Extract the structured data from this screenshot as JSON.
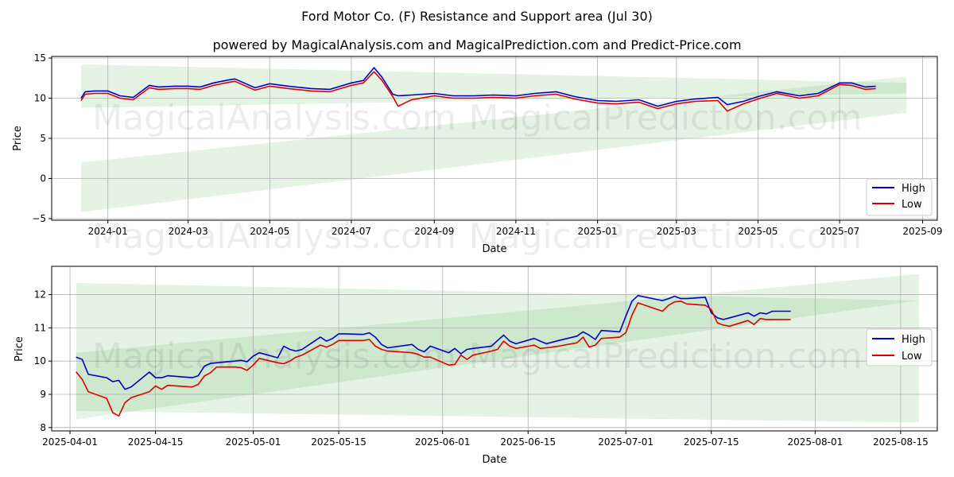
{
  "title": "Ford Motor Co. (F) Resistance and Support area (Jul 30)",
  "subtitle": "powered by MagicalAnalysis.com and MagicalPrediction.com and Predict-Price.com",
  "watermarks": [
    "MagicalAnalysis.com",
    "MagicalPrediction.com"
  ],
  "colors": {
    "high": "#0000cc",
    "low": "#dd0000",
    "band": "#2ca02c",
    "grid": "#b0b0b0"
  },
  "chart_data": [
    {
      "type": "line",
      "xlabel": "Date",
      "ylabel": "Price",
      "ylim": [
        -5.2,
        15.2
      ],
      "xlim": [
        "2023-11-20",
        "2025-09-12"
      ],
      "grid": true,
      "legend": "bottom-right",
      "yticks": [
        -5,
        0,
        5,
        10,
        15
      ],
      "xticks": [
        "2024-01",
        "2024-03",
        "2024-05",
        "2024-07",
        "2024-09",
        "2024-11",
        "2025-01",
        "2025-03",
        "2025-05",
        "2025-07",
        "2025-09"
      ],
      "bands": [
        {
          "x": [
            "2023-12-12",
            "2025-08-20"
          ],
          "upper": [
            14.2,
            11.9
          ],
          "lower": [
            8.8,
            10.6
          ]
        },
        {
          "x": [
            "2023-12-12",
            "2025-08-20"
          ],
          "upper": [
            2.0,
            12.7
          ],
          "lower": [
            -4.2,
            8.2
          ]
        }
      ],
      "series": [
        {
          "name": "High",
          "x": [
            "2023-12-12",
            "2023-12-15",
            "2023-12-22",
            "2024-01-01",
            "2024-01-10",
            "2024-01-20",
            "2024-02-01",
            "2024-02-08",
            "2024-02-20",
            "2024-03-01",
            "2024-03-10",
            "2024-03-20",
            "2024-04-01",
            "2024-04-05",
            "2024-04-20",
            "2024-05-01",
            "2024-05-15",
            "2024-06-01",
            "2024-06-15",
            "2024-07-01",
            "2024-07-10",
            "2024-07-18",
            "2024-07-24",
            "2024-08-01",
            "2024-08-05",
            "2024-08-15",
            "2024-09-01",
            "2024-09-15",
            "2024-10-01",
            "2024-10-15",
            "2024-11-01",
            "2024-11-15",
            "2024-12-01",
            "2024-12-15",
            "2025-01-01",
            "2025-01-15",
            "2025-02-01",
            "2025-02-15",
            "2025-03-01",
            "2025-03-15",
            "2025-04-01",
            "2025-04-08",
            "2025-04-20",
            "2025-05-01",
            "2025-05-15",
            "2025-06-01",
            "2025-06-15",
            "2025-07-01",
            "2025-07-10",
            "2025-07-20",
            "2025-07-28"
          ],
          "y": [
            10.0,
            10.8,
            10.9,
            10.9,
            10.3,
            10.1,
            11.6,
            11.4,
            11.5,
            11.5,
            11.4,
            11.9,
            12.3,
            12.4,
            11.3,
            11.8,
            11.5,
            11.2,
            11.1,
            11.9,
            12.2,
            13.8,
            12.6,
            10.5,
            10.3,
            10.4,
            10.6,
            10.3,
            10.3,
            10.4,
            10.3,
            10.6,
            10.8,
            10.2,
            9.7,
            9.6,
            9.8,
            9.0,
            9.6,
            9.9,
            10.1,
            9.2,
            9.6,
            10.2,
            10.8,
            10.3,
            10.6,
            11.9,
            11.9,
            11.4,
            11.5
          ]
        },
        {
          "name": "Low",
          "x": [
            "2023-12-12",
            "2023-12-15",
            "2023-12-22",
            "2024-01-01",
            "2024-01-10",
            "2024-01-20",
            "2024-02-01",
            "2024-02-08",
            "2024-02-20",
            "2024-03-01",
            "2024-03-10",
            "2024-03-20",
            "2024-04-01",
            "2024-04-05",
            "2024-04-20",
            "2024-05-01",
            "2024-05-15",
            "2024-06-01",
            "2024-06-15",
            "2024-07-01",
            "2024-07-10",
            "2024-07-18",
            "2024-07-24",
            "2024-08-01",
            "2024-08-05",
            "2024-08-15",
            "2024-09-01",
            "2024-09-15",
            "2024-10-01",
            "2024-10-15",
            "2024-11-01",
            "2024-11-15",
            "2024-12-01",
            "2024-12-15",
            "2025-01-01",
            "2025-01-15",
            "2025-02-01",
            "2025-02-15",
            "2025-03-01",
            "2025-03-15",
            "2025-04-01",
            "2025-04-08",
            "2025-04-20",
            "2025-05-01",
            "2025-05-15",
            "2025-06-01",
            "2025-06-15",
            "2025-07-01",
            "2025-07-10",
            "2025-07-20",
            "2025-07-28"
          ],
          "y": [
            9.7,
            10.5,
            10.6,
            10.6,
            10.0,
            9.8,
            11.3,
            11.1,
            11.2,
            11.2,
            11.1,
            11.6,
            12.0,
            12.1,
            11.0,
            11.5,
            11.2,
            10.9,
            10.8,
            11.6,
            11.9,
            13.3,
            12.2,
            10.2,
            9.0,
            9.8,
            10.3,
            10.0,
            10.0,
            10.1,
            10.0,
            10.3,
            10.5,
            9.9,
            9.4,
            9.3,
            9.5,
            8.7,
            9.3,
            9.6,
            9.7,
            8.4,
            9.3,
            9.9,
            10.6,
            10.0,
            10.3,
            11.7,
            11.6,
            11.1,
            11.2
          ]
        }
      ]
    },
    {
      "type": "line",
      "xlabel": "Date",
      "ylabel": "Price",
      "ylim": [
        7.9,
        12.85
      ],
      "xlim": [
        "2025-03-29",
        "2025-08-21"
      ],
      "grid": true,
      "legend": "right",
      "yticks": [
        8,
        9,
        10,
        11,
        12
      ],
      "xticks": [
        "2025-04-01",
        "2025-04-15",
        "2025-05-01",
        "2025-05-15",
        "2025-06-01",
        "2025-06-15",
        "2025-07-01",
        "2025-07-15",
        "2025-08-01",
        "2025-08-15"
      ],
      "bands": [
        {
          "x": [
            "2025-04-02",
            "2025-08-18"
          ],
          "upper": [
            12.35,
            11.82
          ],
          "lower": [
            8.5,
            8.15
          ]
        },
        {
          "x": [
            "2025-04-02",
            "2025-08-18"
          ],
          "upper": [
            10.25,
            12.62
          ],
          "lower": [
            8.25,
            11.82
          ]
        }
      ],
      "series": [
        {
          "name": "High",
          "x": [
            "2025-04-02",
            "2025-04-03",
            "2025-04-04",
            "2025-04-07",
            "2025-04-08",
            "2025-04-09",
            "2025-04-10",
            "2025-04-11",
            "2025-04-14",
            "2025-04-15",
            "2025-04-16",
            "2025-04-17",
            "2025-04-21",
            "2025-04-22",
            "2025-04-23",
            "2025-04-24",
            "2025-04-25",
            "2025-04-28",
            "2025-04-29",
            "2025-04-30",
            "2025-05-01",
            "2025-05-02",
            "2025-05-05",
            "2025-05-06",
            "2025-05-07",
            "2025-05-08",
            "2025-05-09",
            "2025-05-12",
            "2025-05-13",
            "2025-05-14",
            "2025-05-15",
            "2025-05-16",
            "2025-05-19",
            "2025-05-20",
            "2025-05-21",
            "2025-05-22",
            "2025-05-23",
            "2025-05-27",
            "2025-05-28",
            "2025-05-29",
            "2025-05-30",
            "2025-06-02",
            "2025-06-03",
            "2025-06-04",
            "2025-06-05",
            "2025-06-06",
            "2025-06-09",
            "2025-06-10",
            "2025-06-11",
            "2025-06-12",
            "2025-06-13",
            "2025-06-16",
            "2025-06-17",
            "2025-06-18",
            "2025-06-20",
            "2025-06-23",
            "2025-06-24",
            "2025-06-25",
            "2025-06-26",
            "2025-06-27",
            "2025-06-30",
            "2025-07-01",
            "2025-07-02",
            "2025-07-03",
            "2025-07-07",
            "2025-07-08",
            "2025-07-09",
            "2025-07-10",
            "2025-07-11",
            "2025-07-14",
            "2025-07-15",
            "2025-07-16",
            "2025-07-17",
            "2025-07-18",
            "2025-07-21",
            "2025-07-22",
            "2025-07-23",
            "2025-07-24",
            "2025-07-25",
            "2025-07-28"
          ],
          "y": [
            10.12,
            10.05,
            9.6,
            9.5,
            9.38,
            9.42,
            9.15,
            9.22,
            9.67,
            9.5,
            9.5,
            9.56,
            9.5,
            9.56,
            9.85,
            9.93,
            9.95,
            10.0,
            10.02,
            9.98,
            10.15,
            10.25,
            10.1,
            10.45,
            10.35,
            10.3,
            10.35,
            10.72,
            10.6,
            10.68,
            10.82,
            10.82,
            10.8,
            10.85,
            10.72,
            10.5,
            10.4,
            10.5,
            10.35,
            10.28,
            10.45,
            10.25,
            10.38,
            10.22,
            10.35,
            10.38,
            10.45,
            10.62,
            10.78,
            10.6,
            10.52,
            10.68,
            10.6,
            10.52,
            10.62,
            10.75,
            10.88,
            10.78,
            10.65,
            10.92,
            10.88,
            11.35,
            11.8,
            11.97,
            11.82,
            11.88,
            11.95,
            11.88,
            11.88,
            11.92,
            11.45,
            11.3,
            11.25,
            11.3,
            11.45,
            11.35,
            11.45,
            11.42,
            11.5,
            11.5
          ]
        },
        {
          "name": "Low",
          "x": [
            "2025-04-02",
            "2025-04-03",
            "2025-04-04",
            "2025-04-07",
            "2025-04-08",
            "2025-04-09",
            "2025-04-10",
            "2025-04-11",
            "2025-04-14",
            "2025-04-15",
            "2025-04-16",
            "2025-04-17",
            "2025-04-21",
            "2025-04-22",
            "2025-04-23",
            "2025-04-24",
            "2025-04-25",
            "2025-04-28",
            "2025-04-29",
            "2025-04-30",
            "2025-05-01",
            "2025-05-02",
            "2025-05-05",
            "2025-05-06",
            "2025-05-07",
            "2025-05-08",
            "2025-05-09",
            "2025-05-12",
            "2025-05-13",
            "2025-05-14",
            "2025-05-15",
            "2025-05-16",
            "2025-05-19",
            "2025-05-20",
            "2025-05-21",
            "2025-05-22",
            "2025-05-23",
            "2025-05-27",
            "2025-05-28",
            "2025-05-29",
            "2025-05-30",
            "2025-06-02",
            "2025-06-03",
            "2025-06-04",
            "2025-06-05",
            "2025-06-06",
            "2025-06-09",
            "2025-06-10",
            "2025-06-11",
            "2025-06-12",
            "2025-06-13",
            "2025-06-16",
            "2025-06-17",
            "2025-06-18",
            "2025-06-20",
            "2025-06-23",
            "2025-06-24",
            "2025-06-25",
            "2025-06-26",
            "2025-06-27",
            "2025-06-30",
            "2025-07-01",
            "2025-07-02",
            "2025-07-03",
            "2025-07-07",
            "2025-07-08",
            "2025-07-09",
            "2025-07-10",
            "2025-07-11",
            "2025-07-14",
            "2025-07-15",
            "2025-07-16",
            "2025-07-17",
            "2025-07-18",
            "2025-07-21",
            "2025-07-22",
            "2025-07-23",
            "2025-07-24",
            "2025-07-25",
            "2025-07-28"
          ],
          "y": [
            9.68,
            9.45,
            9.08,
            8.88,
            8.45,
            8.35,
            8.75,
            8.9,
            9.08,
            9.25,
            9.15,
            9.27,
            9.22,
            9.3,
            9.55,
            9.65,
            9.82,
            9.82,
            9.8,
            9.72,
            9.88,
            10.08,
            9.95,
            9.92,
            10.0,
            10.12,
            10.18,
            10.48,
            10.42,
            10.5,
            10.62,
            10.62,
            10.62,
            10.65,
            10.45,
            10.35,
            10.3,
            10.25,
            10.2,
            10.12,
            10.12,
            9.88,
            9.9,
            10.18,
            10.05,
            10.18,
            10.3,
            10.35,
            10.6,
            10.45,
            10.38,
            10.48,
            10.38,
            10.4,
            10.45,
            10.55,
            10.72,
            10.42,
            10.48,
            10.68,
            10.72,
            10.85,
            11.38,
            11.75,
            11.5,
            11.68,
            11.78,
            11.8,
            11.72,
            11.68,
            11.55,
            11.15,
            11.08,
            11.05,
            11.22,
            11.1,
            11.28,
            11.25,
            11.25,
            11.25
          ]
        }
      ]
    }
  ]
}
